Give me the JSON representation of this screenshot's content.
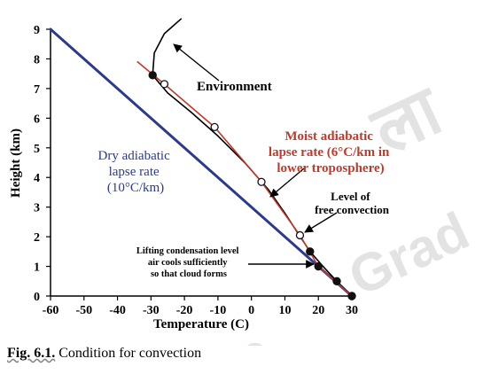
{
  "chart_data": {
    "type": "line",
    "title": "",
    "xlabel": "Temperature (C)",
    "ylabel": "Height (km)",
    "xlim": [
      -60,
      30
    ],
    "ylim": [
      0,
      9
    ],
    "x_ticks": [
      "-60",
      "-50",
      "-40",
      "-30",
      "-20",
      "-10",
      "0",
      "10",
      "20",
      "30"
    ],
    "y_ticks": [
      "0",
      "1",
      "2",
      "3",
      "4",
      "5",
      "6",
      "7",
      "8",
      "9"
    ],
    "grid": false,
    "series": [
      {
        "name": "Dry adiabatic lapse rate",
        "color": "#2b3a8f",
        "points": [
          [
            30,
            0
          ],
          [
            -60,
            9
          ]
        ]
      },
      {
        "name": "Environment",
        "color": "#000000",
        "points": [
          [
            30,
            0
          ],
          [
            25.5,
            0.5
          ],
          [
            21,
            1.05
          ],
          [
            17.5,
            1.5
          ],
          [
            14,
            2.1
          ],
          [
            10,
            2.8
          ],
          [
            5,
            3.6
          ],
          [
            -2,
            4.5
          ],
          [
            -10,
            5.4
          ],
          [
            -18,
            6.2
          ],
          [
            -25,
            6.85
          ],
          [
            -29.5,
            7.45
          ],
          [
            -29,
            8.2
          ],
          [
            -26,
            8.85
          ],
          [
            -21,
            9.35
          ]
        ]
      },
      {
        "name": "Moist adiabatic lapse rate",
        "color": "#c0392b",
        "points": [
          [
            30,
            0
          ],
          [
            20,
            1.0
          ],
          [
            14.5,
            2.05
          ],
          [
            3,
            3.85
          ],
          [
            -11,
            5.7
          ],
          [
            -26,
            7.15
          ],
          [
            -34,
            7.9
          ]
        ]
      }
    ],
    "marker_points": {
      "filled": [
        [
          30,
          0
        ],
        [
          25.5,
          0.5
        ],
        [
          20,
          1.0
        ],
        [
          17.5,
          1.5
        ],
        [
          -29.5,
          7.45
        ]
      ],
      "open": [
        [
          14.5,
          2.05
        ],
        [
          3,
          3.85
        ],
        [
          -11,
          5.7
        ],
        [
          -26,
          7.15
        ]
      ]
    },
    "annotations": [
      {
        "text": "Environment",
        "color": "#000000"
      },
      {
        "text": "Moist adiabatic lapse rate (6°C/km in lower troposphere)",
        "lines": [
          "Moist adiabatic",
          "lapse rate (6°C/km in",
          "lower troposphere)"
        ],
        "color": "#c0392b"
      },
      {
        "text": "Dry adiabatic lapse rate (10°C/km)",
        "lines": [
          "Dry adiabatic",
          "lapse rate",
          "(10°C/km)"
        ],
        "color": "#2b3a8f"
      },
      {
        "text": "Level of free convection",
        "lines": [
          "Level of",
          "free convection"
        ],
        "color": "#000000"
      },
      {
        "text": "Lifting condensation level air cools sufficiently so that cloud forms",
        "lines": [
          "Lifting condensation level",
          "air cools sufficiently",
          "so that cloud forms"
        ],
        "color": "#000000"
      }
    ]
  },
  "caption": {
    "figure_number": "Fig. 6.1.",
    "text": "Condition for convection"
  },
  "watermark": {
    "lines": [
      "ला",
      "to",
      "Grad"
    ]
  }
}
